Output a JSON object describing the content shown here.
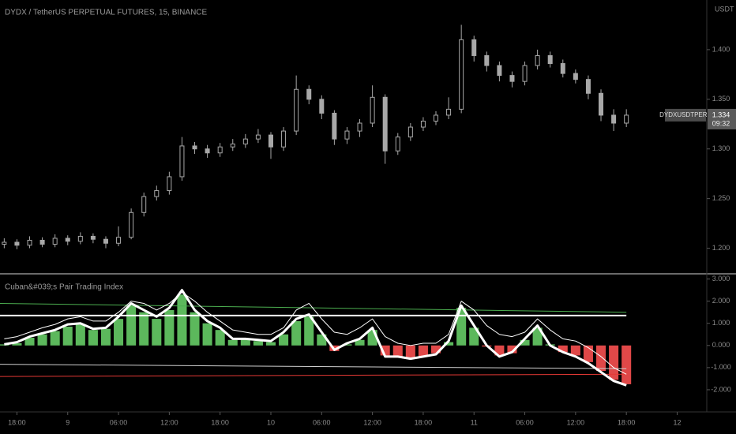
{
  "chart_data": [
    {
      "type": "candlestick",
      "title": "DYDX / TetherUS PERPETUAL FUTURES, 15, BINANCE",
      "y_axis_label": "USDT",
      "color": "#a8a8a8",
      "xlim": [
        -2,
        81.5
      ],
      "ylim": [
        1.175,
        1.45
      ],
      "yticks": [
        {
          "value": 1.2,
          "label": "1.200"
        },
        {
          "value": 1.25,
          "label": "1.250"
        },
        {
          "value": 1.3,
          "label": "1.300"
        },
        {
          "value": 1.35,
          "label": "1.350"
        },
        {
          "value": 1.4,
          "label": "1.400"
        }
      ],
      "x": [
        -1.5,
        0,
        1.5,
        3,
        4.5,
        6,
        7.5,
        9,
        10.5,
        12,
        13.5,
        15,
        16.5,
        18,
        19.5,
        21,
        22.5,
        24,
        25.5,
        27,
        28.5,
        30,
        31.5,
        33,
        34.5,
        36,
        37.5,
        39,
        40.5,
        42,
        43.5,
        45,
        46.5,
        48,
        49.5,
        51,
        52.5,
        54,
        55.5,
        57,
        58.5,
        60,
        61.5,
        63,
        64.5,
        66,
        67.5,
        69,
        70.5,
        72
      ],
      "open": [
        1.204,
        1.206,
        1.203,
        1.208,
        1.204,
        1.21,
        1.207,
        1.212,
        1.209,
        1.205,
        1.211,
        1.236,
        1.252,
        1.258,
        1.272,
        1.303,
        1.3,
        1.296,
        1.302,
        1.305,
        1.31,
        1.314,
        1.302,
        1.318,
        1.36,
        1.35,
        1.336,
        1.31,
        1.318,
        1.326,
        1.352,
        1.298,
        1.312,
        1.322,
        1.328,
        1.334,
        1.34,
        1.41,
        1.394,
        1.384,
        1.374,
        1.368,
        1.384,
        1.394,
        1.386,
        1.376,
        1.37,
        1.356,
        1.334,
        1.326
      ],
      "high": [
        1.21,
        1.209,
        1.212,
        1.211,
        1.214,
        1.213,
        1.216,
        1.215,
        1.212,
        1.222,
        1.24,
        1.256,
        1.263,
        1.277,
        1.312,
        1.307,
        1.304,
        1.306,
        1.31,
        1.315,
        1.32,
        1.317,
        1.322,
        1.374,
        1.364,
        1.354,
        1.339,
        1.322,
        1.33,
        1.364,
        1.355,
        1.316,
        1.326,
        1.332,
        1.338,
        1.352,
        1.425,
        1.414,
        1.398,
        1.388,
        1.378,
        1.388,
        1.4,
        1.398,
        1.39,
        1.38,
        1.374,
        1.36,
        1.34,
        1.34
      ],
      "low": [
        1.2,
        1.199,
        1.2,
        1.201,
        1.201,
        1.203,
        1.204,
        1.205,
        1.2,
        1.202,
        1.209,
        1.232,
        1.248,
        1.254,
        1.268,
        1.295,
        1.291,
        1.292,
        1.298,
        1.301,
        1.306,
        1.29,
        1.298,
        1.314,
        1.345,
        1.33,
        1.304,
        1.305,
        1.312,
        1.322,
        1.285,
        1.294,
        1.308,
        1.318,
        1.324,
        1.33,
        1.336,
        1.388,
        1.378,
        1.368,
        1.362,
        1.364,
        1.38,
        1.382,
        1.372,
        1.366,
        1.35,
        1.328,
        1.318,
        1.322
      ],
      "close": [
        1.206,
        1.203,
        1.208,
        1.204,
        1.21,
        1.207,
        1.212,
        1.209,
        1.205,
        1.211,
        1.236,
        1.252,
        1.258,
        1.272,
        1.303,
        1.3,
        1.296,
        1.302,
        1.305,
        1.31,
        1.314,
        1.302,
        1.318,
        1.36,
        1.35,
        1.336,
        1.31,
        1.318,
        1.326,
        1.352,
        1.298,
        1.312,
        1.322,
        1.328,
        1.334,
        1.34,
        1.41,
        1.394,
        1.384,
        1.374,
        1.368,
        1.384,
        1.394,
        1.386,
        1.376,
        1.37,
        1.356,
        1.334,
        1.326,
        1.334
      ],
      "symbol_tag": "DYDXUSDTPERP",
      "last_price": 1.334,
      "countdown": "09:32"
    },
    {
      "type": "indicator",
      "title": "Cuban&#039;s Pair Trading Index",
      "xlim": [
        -2,
        81.5
      ],
      "ylim": [
        -3,
        3.2
      ],
      "yticks": [
        {
          "value": -2,
          "label": "-2.000"
        },
        {
          "value": -1,
          "label": "-1.000"
        },
        {
          "value": 0,
          "label": "0.000"
        },
        {
          "value": 1,
          "label": "1.000"
        },
        {
          "value": 2,
          "label": "2.000"
        },
        {
          "value": 3,
          "label": "3.000"
        }
      ],
      "xticks": [
        {
          "value": 0,
          "label": "18:00"
        },
        {
          "value": 6,
          "label": "9"
        },
        {
          "value": 12,
          "label": "06:00"
        },
        {
          "value": 18,
          "label": "12:00"
        },
        {
          "value": 24,
          "label": "18:00"
        },
        {
          "value": 30,
          "label": "10"
        },
        {
          "value": 36,
          "label": "06:00"
        },
        {
          "value": 42,
          "label": "12:00"
        },
        {
          "value": 48,
          "label": "18:00"
        },
        {
          "value": 54,
          "label": "11"
        },
        {
          "value": 60,
          "label": "06:00"
        },
        {
          "value": 66,
          "label": "12:00"
        },
        {
          "value": 72,
          "label": "18:00"
        },
        {
          "value": 78,
          "label": "12"
        }
      ],
      "x": [
        -1.5,
        0,
        1.5,
        3,
        4.5,
        6,
        7.5,
        9,
        10.5,
        12,
        13.5,
        15,
        16.5,
        18,
        19.5,
        21,
        22.5,
        24,
        25.5,
        27,
        28.5,
        30,
        31.5,
        33,
        34.5,
        36,
        37.5,
        39,
        40.5,
        42,
        43.5,
        45,
        46.5,
        48,
        49.5,
        51,
        52.5,
        54,
        55.5,
        57,
        58.5,
        60,
        61.5,
        63,
        64.5,
        66,
        67.5,
        69,
        70.5,
        72
      ],
      "series": [
        {
          "type": "bar",
          "color_positive": "#5cb85c",
          "color_negative": "#e04848",
          "values": [
            0.05,
            0.1,
            0.35,
            0.5,
            0.65,
            0.85,
            0.95,
            0.7,
            0.75,
            1.2,
            1.8,
            1.5,
            1.2,
            1.6,
            2.3,
            1.5,
            1.0,
            0.7,
            0.25,
            0.3,
            0.2,
            0.15,
            0.5,
            1.1,
            1.3,
            0.5,
            -0.25,
            0.05,
            0.25,
            0.7,
            -0.45,
            -0.55,
            -0.6,
            -0.5,
            -0.35,
            0.15,
            1.7,
            0.8,
            -0.05,
            -0.45,
            -0.35,
            0.25,
            0.8,
            0.05,
            -0.3,
            -0.45,
            -0.75,
            -1.15,
            -1.55,
            -1.75
          ]
        },
        {
          "type": "line",
          "color": "#4caf50",
          "line_width": 1,
          "x": [
            -2,
            72
          ],
          "values": [
            1.9,
            1.5
          ]
        },
        {
          "type": "line",
          "color": "#e53935",
          "line_width": 1,
          "x": [
            -2,
            72
          ],
          "values": [
            -1.4,
            -1.3
          ]
        },
        {
          "type": "line",
          "color": "#d0d0d0",
          "line_width": 1,
          "x": [
            -2,
            72
          ],
          "values": [
            -0.85,
            -1.05
          ]
        },
        {
          "type": "line",
          "color": "#ffffff",
          "line_width": 2,
          "x": [
            -2,
            72
          ],
          "values": [
            1.35,
            1.35
          ]
        },
        {
          "type": "line",
          "color": "#ffffff",
          "line_width": 1,
          "values": [
            0.3,
            0.4,
            0.6,
            0.8,
            0.95,
            1.2,
            1.3,
            1.1,
            1.1,
            1.5,
            2.0,
            1.9,
            1.6,
            1.9,
            2.4,
            2.0,
            1.5,
            1.1,
            0.7,
            0.6,
            0.5,
            0.5,
            0.8,
            1.6,
            1.9,
            1.2,
            0.6,
            0.5,
            0.8,
            1.2,
            0.4,
            0.1,
            0.0,
            0.1,
            0.1,
            0.5,
            2.0,
            1.6,
            0.9,
            0.5,
            0.4,
            0.6,
            1.2,
            0.7,
            0.3,
            0.2,
            -0.1,
            -0.5,
            -1.0,
            -1.3
          ]
        },
        {
          "type": "line",
          "color": "#ffffff",
          "line_width": 3,
          "values": [
            0.05,
            0.15,
            0.4,
            0.55,
            0.7,
            0.95,
            1.0,
            0.75,
            0.8,
            1.3,
            1.9,
            1.6,
            1.3,
            1.7,
            2.5,
            1.6,
            1.1,
            0.8,
            0.3,
            0.3,
            0.25,
            0.2,
            0.6,
            1.2,
            1.4,
            0.6,
            -0.2,
            0.1,
            0.3,
            0.8,
            -0.5,
            -0.5,
            -0.6,
            -0.5,
            -0.4,
            0.2,
            1.8,
            0.9,
            0.0,
            -0.5,
            -0.3,
            0.3,
            0.9,
            0.0,
            -0.3,
            -0.5,
            -0.8,
            -1.2,
            -1.6,
            -1.8
          ]
        }
      ]
    }
  ]
}
